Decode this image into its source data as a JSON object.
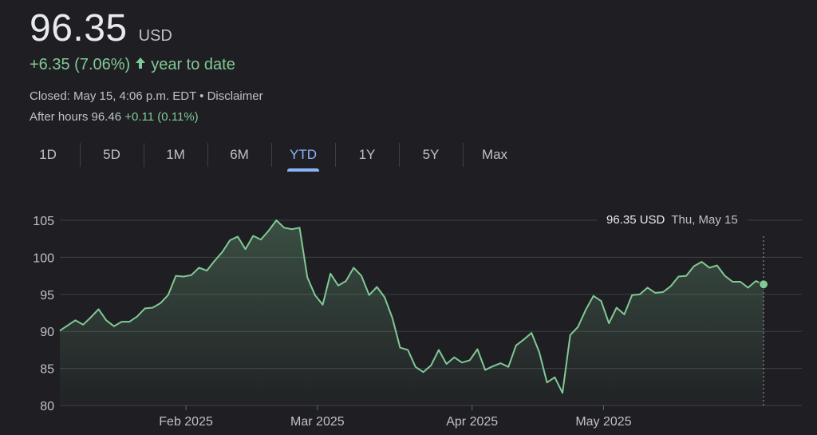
{
  "quote": {
    "price": "96.35",
    "currency": "USD",
    "change": "+6.35 (7.06%)",
    "change_period": "year to date",
    "closed_text": "Closed: May 15, 4:06 p.m. EDT • Disclaimer",
    "after_hours_label": "After hours 96.46",
    "after_hours_change": "+0.11 (0.11%)"
  },
  "tabs": [
    "1D",
    "5D",
    "1M",
    "6M",
    "YTD",
    "1Y",
    "5Y",
    "Max"
  ],
  "active_tab": "YTD",
  "tooltip": {
    "price": "96.35 USD",
    "date": "Thu, May 15"
  },
  "colors": {
    "line": "#81c995",
    "grid": "#3c4043",
    "active_tab": "#8ab4f8"
  },
  "chart_data": {
    "type": "area",
    "xlabel": "",
    "ylabel": "",
    "ylim": [
      80,
      105
    ],
    "yticks": [
      80,
      85,
      90,
      95,
      100,
      105
    ],
    "xticks": [
      "Feb 2025",
      "Mar 2025",
      "Apr 2025",
      "May 2025"
    ],
    "series": [
      {
        "values": [
          90.1,
          90.8,
          91.5,
          90.9,
          91.9,
          93.0,
          91.5,
          90.7,
          91.3,
          91.3,
          92.0,
          93.1,
          93.2,
          93.8,
          94.9,
          97.5,
          97.4,
          97.6,
          98.6,
          98.2,
          99.5,
          100.7,
          102.3,
          102.8,
          101.1,
          102.9,
          102.4,
          103.6,
          105.0,
          104.0,
          103.8,
          104.0,
          97.3,
          94.9,
          93.6,
          97.8,
          96.2,
          96.8,
          98.6,
          97.5,
          94.9,
          96.0,
          94.6,
          91.8,
          87.8,
          87.5,
          85.2,
          84.5,
          85.4,
          87.5,
          85.6,
          86.5,
          85.8,
          86.1,
          87.6,
          84.8,
          85.3,
          85.7,
          85.2,
          88.1,
          88.9,
          89.8,
          87.2,
          83.1,
          83.8,
          81.7,
          89.5,
          90.6,
          92.9,
          94.8,
          94.1,
          91.1,
          93.2,
          92.3,
          94.9,
          95.0,
          95.9,
          95.2,
          95.3,
          96.1,
          97.4,
          97.5,
          98.8,
          99.4,
          98.6,
          98.9,
          97.5,
          96.7,
          96.7,
          95.9,
          96.8,
          96.35
        ]
      }
    ]
  }
}
